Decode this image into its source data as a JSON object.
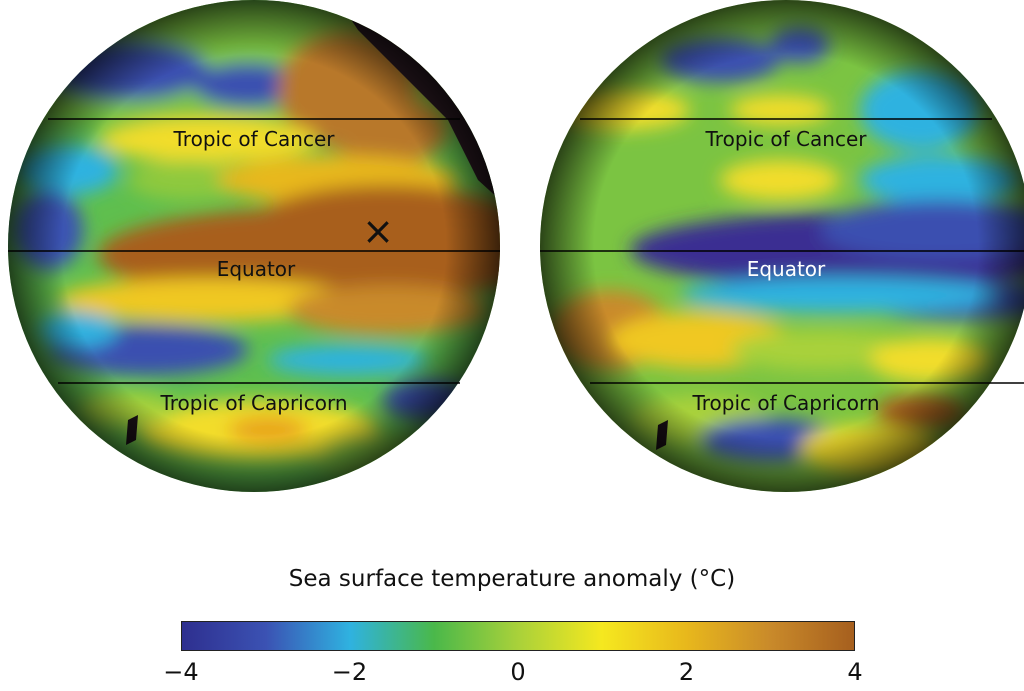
{
  "maps": [
    {
      "labels": {
        "tropic_cancer": "Tropic of Cancer",
        "equator": "Equator",
        "tropic_capricorn": "Tropic of Capricorn"
      },
      "marker_symbol": "×"
    },
    {
      "labels": {
        "tropic_cancer": "Tropic of Cancer",
        "equator": "Equator",
        "tropic_capricorn": "Tropic of Capricorn"
      }
    }
  ],
  "colorbar": {
    "title": "Sea surface temperature anomaly (°C)",
    "ticks": [
      "−4",
      "−2",
      "0",
      "2",
      "4"
    ],
    "range": [
      -4,
      4
    ],
    "colors": {
      "-4": "#2e2f8f",
      "-3": "#3b52b3",
      "-2": "#2fb2e0",
      "-1": "#4ab84a",
      "0": "#a9d13a",
      "1": "#f5e81f",
      "2": "#e8b81c",
      "3": "#c98a2a",
      "4": "#a65f1e"
    },
    "land_color": "#2b1a22"
  }
}
